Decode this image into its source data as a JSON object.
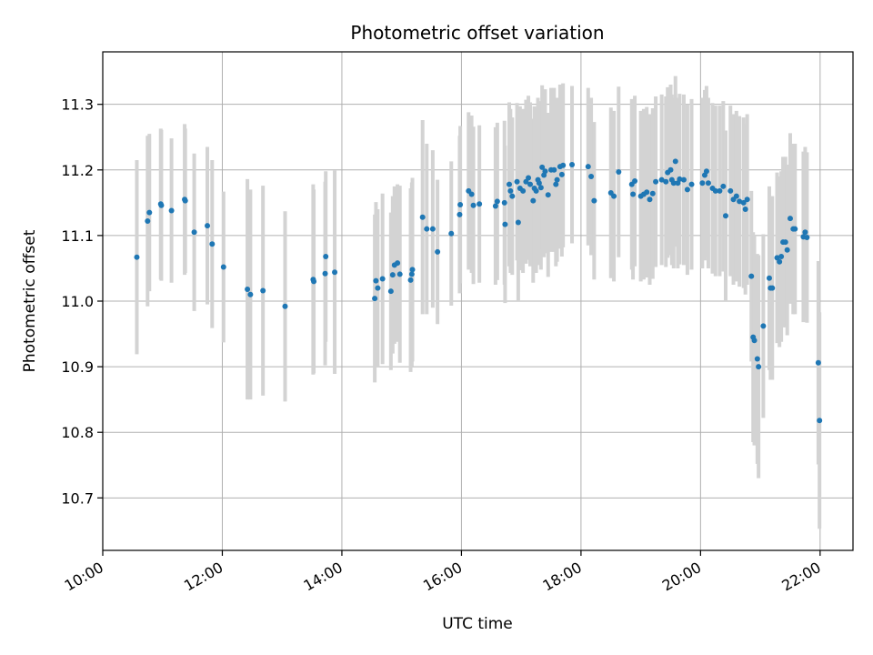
{
  "chart_data": {
    "type": "scatter",
    "title": "Photometric offset variation",
    "xlabel": "UTC time",
    "ylabel": "Photometric offset",
    "x_unit": "hours UTC",
    "xlim": [
      10.0,
      22.55
    ],
    "ylim": [
      10.62,
      11.38
    ],
    "x_ticks": [
      10,
      12,
      14,
      16,
      18,
      20,
      22
    ],
    "x_tick_labels": [
      "10:00",
      "12:00",
      "14:00",
      "16:00",
      "18:00",
      "20:00",
      "22:00"
    ],
    "y_ticks": [
      10.7,
      10.8,
      10.9,
      11.0,
      11.1,
      11.2,
      11.3
    ],
    "y_tick_labels": [
      "10.7",
      "10.8",
      "10.9",
      "11.0",
      "11.1",
      "11.2",
      "11.3"
    ],
    "grid": true,
    "colors": {
      "marker": "#1f77b4",
      "errorbar": "#d3d3d3",
      "grid": "#b0b0b0"
    },
    "points": [
      [
        10.57,
        11.067,
        0.148
      ],
      [
        10.75,
        11.122,
        0.13
      ],
      [
        10.78,
        11.135,
        0.12
      ],
      [
        10.97,
        11.148,
        0.115
      ],
      [
        10.98,
        11.146,
        0.115
      ],
      [
        11.15,
        11.138,
        0.11
      ],
      [
        11.37,
        11.155,
        0.115
      ],
      [
        11.38,
        11.153,
        0.11
      ],
      [
        11.53,
        11.105,
        0.12
      ],
      [
        11.75,
        11.115,
        0.12
      ],
      [
        11.83,
        11.087,
        0.128
      ],
      [
        12.02,
        11.052,
        0.115
      ],
      [
        12.42,
        11.018,
        0.168
      ],
      [
        12.47,
        11.01,
        0.16
      ],
      [
        12.68,
        11.016,
        0.16
      ],
      [
        13.05,
        10.992,
        0.145
      ],
      [
        13.52,
        11.033,
        0.145
      ],
      [
        13.53,
        11.03,
        0.14
      ],
      [
        13.72,
        11.042,
        0.14
      ],
      [
        13.73,
        11.068,
        0.13
      ],
      [
        13.88,
        11.044,
        0.155
      ],
      [
        14.55,
        11.004,
        0.128
      ],
      [
        14.57,
        11.031,
        0.12
      ],
      [
        14.6,
        11.02,
        0.12
      ],
      [
        14.68,
        11.034,
        0.13
      ],
      [
        14.82,
        11.015,
        0.12
      ],
      [
        14.85,
        11.04,
        0.12
      ],
      [
        14.88,
        11.055,
        0.12
      ],
      [
        14.93,
        11.058,
        0.12
      ],
      [
        14.97,
        11.041,
        0.135
      ],
      [
        15.15,
        11.032,
        0.14
      ],
      [
        15.17,
        11.041,
        0.14
      ],
      [
        15.18,
        11.048,
        0.14
      ],
      [
        15.35,
        11.128,
        0.148
      ],
      [
        15.42,
        11.11,
        0.13
      ],
      [
        15.52,
        11.11,
        0.12
      ],
      [
        15.6,
        11.075,
        0.11
      ],
      [
        15.83,
        11.103,
        0.11
      ],
      [
        15.97,
        11.132,
        0.12
      ],
      [
        15.98,
        11.147,
        0.12
      ],
      [
        16.12,
        11.168,
        0.12
      ],
      [
        16.17,
        11.163,
        0.12
      ],
      [
        16.2,
        11.146,
        0.12
      ],
      [
        16.3,
        11.148,
        0.12
      ],
      [
        16.57,
        11.145,
        0.12
      ],
      [
        16.6,
        11.152,
        0.12
      ],
      [
        16.72,
        11.15,
        0.125
      ],
      [
        16.73,
        11.117,
        0.12
      ],
      [
        16.8,
        11.178,
        0.125
      ],
      [
        16.82,
        11.168,
        0.125
      ],
      [
        16.85,
        11.16,
        0.12
      ],
      [
        16.93,
        11.182,
        0.12
      ],
      [
        16.95,
        11.12,
        0.12
      ],
      [
        16.98,
        11.172,
        0.125
      ],
      [
        17.03,
        11.168,
        0.125
      ],
      [
        17.08,
        11.182,
        0.125
      ],
      [
        17.12,
        11.188,
        0.125
      ],
      [
        17.15,
        11.178,
        0.125
      ],
      [
        17.2,
        11.153,
        0.125
      ],
      [
        17.22,
        11.172,
        0.125
      ],
      [
        17.25,
        11.168,
        0.125
      ],
      [
        17.28,
        11.185,
        0.125
      ],
      [
        17.3,
        11.18,
        0.125
      ],
      [
        17.33,
        11.173,
        0.125
      ],
      [
        17.35,
        11.204,
        0.125
      ],
      [
        17.38,
        11.192,
        0.125
      ],
      [
        17.4,
        11.198,
        0.125
      ],
      [
        17.45,
        11.162,
        0.125
      ],
      [
        17.5,
        11.2,
        0.125
      ],
      [
        17.55,
        11.2,
        0.125
      ],
      [
        17.58,
        11.178,
        0.125
      ],
      [
        17.6,
        11.185,
        0.125
      ],
      [
        17.65,
        11.205,
        0.125
      ],
      [
        17.68,
        11.193,
        0.125
      ],
      [
        17.7,
        11.207,
        0.125
      ],
      [
        17.85,
        11.208,
        0.12
      ],
      [
        18.12,
        11.205,
        0.12
      ],
      [
        18.17,
        11.19,
        0.12
      ],
      [
        18.22,
        11.153,
        0.12
      ],
      [
        18.5,
        11.165,
        0.13
      ],
      [
        18.55,
        11.16,
        0.13
      ],
      [
        18.63,
        11.197,
        0.13
      ],
      [
        18.85,
        11.178,
        0.13
      ],
      [
        18.87,
        11.163,
        0.13
      ],
      [
        18.9,
        11.183,
        0.13
      ],
      [
        19.0,
        11.16,
        0.13
      ],
      [
        19.05,
        11.163,
        0.13
      ],
      [
        19.1,
        11.166,
        0.13
      ],
      [
        19.15,
        11.155,
        0.13
      ],
      [
        19.2,
        11.164,
        0.13
      ],
      [
        19.25,
        11.182,
        0.13
      ],
      [
        19.35,
        11.185,
        0.13
      ],
      [
        19.42,
        11.182,
        0.13
      ],
      [
        19.45,
        11.196,
        0.13
      ],
      [
        19.5,
        11.2,
        0.13
      ],
      [
        19.52,
        11.185,
        0.13
      ],
      [
        19.55,
        11.18,
        0.13
      ],
      [
        19.58,
        11.213,
        0.13
      ],
      [
        19.62,
        11.18,
        0.13
      ],
      [
        19.65,
        11.186,
        0.13
      ],
      [
        19.72,
        11.185,
        0.13
      ],
      [
        19.78,
        11.17,
        0.13
      ],
      [
        19.85,
        11.178,
        0.13
      ],
      [
        20.03,
        11.18,
        0.13
      ],
      [
        20.07,
        11.192,
        0.13
      ],
      [
        20.1,
        11.198,
        0.13
      ],
      [
        20.13,
        11.18,
        0.13
      ],
      [
        20.2,
        11.172,
        0.13
      ],
      [
        20.25,
        11.168,
        0.13
      ],
      [
        20.32,
        11.168,
        0.13
      ],
      [
        20.38,
        11.175,
        0.13
      ],
      [
        20.42,
        11.13,
        0.13
      ],
      [
        20.5,
        11.168,
        0.13
      ],
      [
        20.55,
        11.155,
        0.13
      ],
      [
        20.6,
        11.16,
        0.13
      ],
      [
        20.65,
        11.152,
        0.13
      ],
      [
        20.72,
        11.15,
        0.13
      ],
      [
        20.75,
        11.14,
        0.13
      ],
      [
        20.78,
        11.155,
        0.13
      ],
      [
        20.85,
        11.038,
        0.13
      ],
      [
        20.88,
        10.945,
        0.16
      ],
      [
        20.9,
        10.94,
        0.16
      ],
      [
        20.95,
        10.912,
        0.16
      ],
      [
        20.97,
        10.9,
        0.17
      ],
      [
        21.05,
        10.962,
        0.14
      ],
      [
        21.15,
        11.035,
        0.14
      ],
      [
        21.17,
        11.02,
        0.14
      ],
      [
        21.2,
        11.02,
        0.14
      ],
      [
        21.28,
        11.066,
        0.13
      ],
      [
        21.32,
        11.06,
        0.13
      ],
      [
        21.35,
        11.068,
        0.13
      ],
      [
        21.38,
        11.09,
        0.13
      ],
      [
        21.42,
        11.09,
        0.13
      ],
      [
        21.45,
        11.078,
        0.13
      ],
      [
        21.5,
        11.126,
        0.13
      ],
      [
        21.55,
        11.11,
        0.13
      ],
      [
        21.58,
        11.11,
        0.13
      ],
      [
        21.72,
        11.098,
        0.13
      ],
      [
        21.75,
        11.105,
        0.13
      ],
      [
        21.78,
        11.097,
        0.13
      ],
      [
        21.97,
        10.906,
        0.155
      ],
      [
        21.99,
        10.818,
        0.165
      ]
    ]
  }
}
